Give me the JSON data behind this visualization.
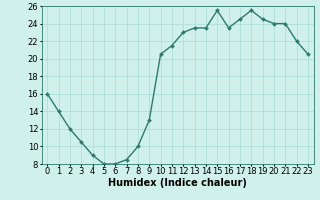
{
  "x": [
    0,
    1,
    2,
    3,
    4,
    5,
    6,
    7,
    8,
    9,
    10,
    11,
    12,
    13,
    14,
    15,
    16,
    17,
    18,
    19,
    20,
    21,
    22,
    23
  ],
  "y": [
    16,
    14,
    12,
    10.5,
    9,
    8,
    8,
    8.5,
    10,
    13,
    20.5,
    21.5,
    23,
    23.5,
    23.5,
    25.5,
    23.5,
    24.5,
    25.5,
    24.5,
    24,
    24,
    22,
    20.5
  ],
  "line_color": "#2d7a6e",
  "marker": "D",
  "marker_size": 2.0,
  "bg_color": "#cff0eb",
  "grid_color": "#a8dbd5",
  "xlabel": "Humidex (Indice chaleur)",
  "ylim": [
    8,
    26
  ],
  "xlim": [
    -0.5,
    23.5
  ],
  "yticks": [
    8,
    10,
    12,
    14,
    16,
    18,
    20,
    22,
    24,
    26
  ],
  "xticks": [
    0,
    1,
    2,
    3,
    4,
    5,
    6,
    7,
    8,
    9,
    10,
    11,
    12,
    13,
    14,
    15,
    16,
    17,
    18,
    19,
    20,
    21,
    22,
    23
  ],
  "xtick_labels": [
    "0",
    "1",
    "2",
    "3",
    "4",
    "5",
    "6",
    "7",
    "8",
    "9",
    "10",
    "11",
    "12",
    "13",
    "14",
    "15",
    "16",
    "17",
    "18",
    "19",
    "20",
    "21",
    "22",
    "23"
  ],
  "xlabel_fontsize": 7,
  "tick_fontsize": 6,
  "line_width": 1.0
}
